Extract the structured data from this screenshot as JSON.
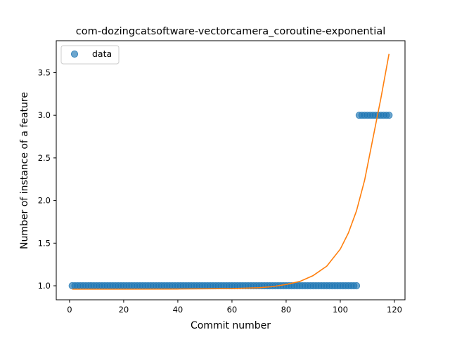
{
  "chart_data": {
    "type": "scatter",
    "title": "com-dozingcatsoftware-vectorcamera_coroutine-exponential",
    "xlabel": "Commit number",
    "ylabel": "Number of instance of a feature",
    "xlim": [
      -4.9,
      123.9
    ],
    "ylim": [
      0.8355,
      3.8745
    ],
    "xticks": [
      0,
      20,
      40,
      60,
      80,
      100,
      120
    ],
    "yticks": [
      1.0,
      1.5,
      2.0,
      2.5,
      3.0,
      3.5
    ],
    "xtick_labels": [
      "0",
      "20",
      "40",
      "60",
      "80",
      "100",
      "120"
    ],
    "ytick_labels": [
      "1.0",
      "1.5",
      "2.0",
      "2.5",
      "3.0",
      "3.5"
    ],
    "grid": false,
    "legend": {
      "position": "top-left",
      "entries": [
        "data"
      ]
    },
    "colors": {
      "data": "#1f77b4",
      "fit": "#ff7f0e"
    },
    "series": [
      {
        "name": "data",
        "kind": "scatter",
        "segments": [
          {
            "x_start": 1,
            "x_end": 106,
            "y": 1.0
          },
          {
            "x_start": 107,
            "x_end": 118,
            "y": 3.0
          }
        ]
      },
      {
        "kind": "line",
        "x": [
          1,
          20,
          40,
          60,
          70,
          75,
          80,
          85,
          90,
          95,
          100,
          103,
          106,
          109,
          112,
          115,
          118
        ],
        "y": [
          0.96,
          0.96,
          0.962,
          0.967,
          0.977,
          0.99,
          1.015,
          1.05,
          1.12,
          1.23,
          1.43,
          1.62,
          1.88,
          2.24,
          2.72,
          3.2,
          3.72
        ]
      }
    ]
  }
}
